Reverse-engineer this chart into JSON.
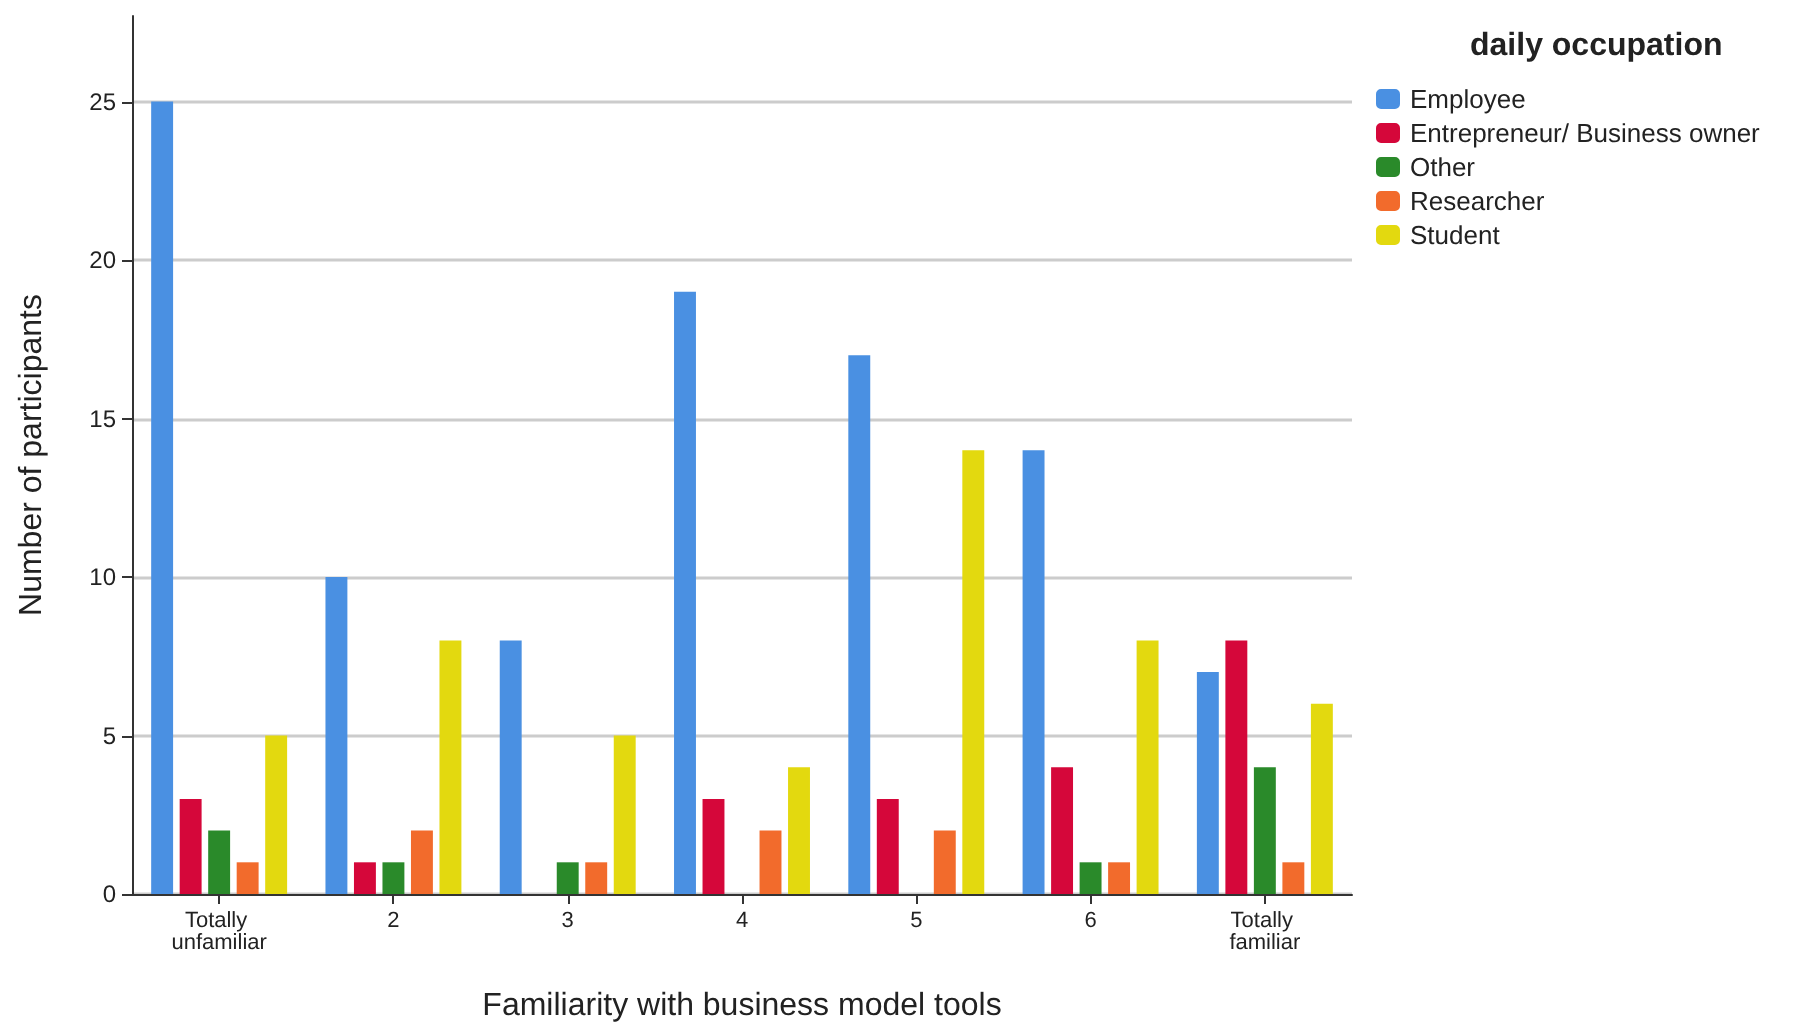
{
  "chart_data": {
    "type": "bar",
    "xlabel": "Familiarity with business model tools",
    "ylabel": "Number of participants",
    "legend_title": "daily occupation",
    "categories": [
      "Totally unfamiliar",
      "2",
      "3",
      "4",
      "5",
      "6",
      "Totally familiar"
    ],
    "series": [
      {
        "name": "Employee",
        "color": "#4a90e2",
        "values": [
          25,
          10,
          8,
          19,
          17,
          14,
          7
        ]
      },
      {
        "name": "Entrepreneur/ Business owner",
        "color": "#d5073a",
        "values": [
          3,
          1,
          0,
          3,
          3,
          4,
          8
        ]
      },
      {
        "name": "Other",
        "color": "#2a8a2a",
        "values": [
          2,
          1,
          1,
          0,
          0,
          1,
          4
        ]
      },
      {
        "name": "Researcher",
        "color": "#f26b2c",
        "values": [
          1,
          2,
          1,
          2,
          2,
          1,
          1
        ]
      },
      {
        "name": "Student",
        "color": "#e3d90f",
        "values": [
          5,
          8,
          5,
          4,
          14,
          8,
          6
        ]
      }
    ],
    "ylim": [
      0,
      27.7
    ],
    "yticks": [
      0,
      5,
      10,
      15,
      20,
      25
    ],
    "grid": "y",
    "legend": "top right"
  }
}
